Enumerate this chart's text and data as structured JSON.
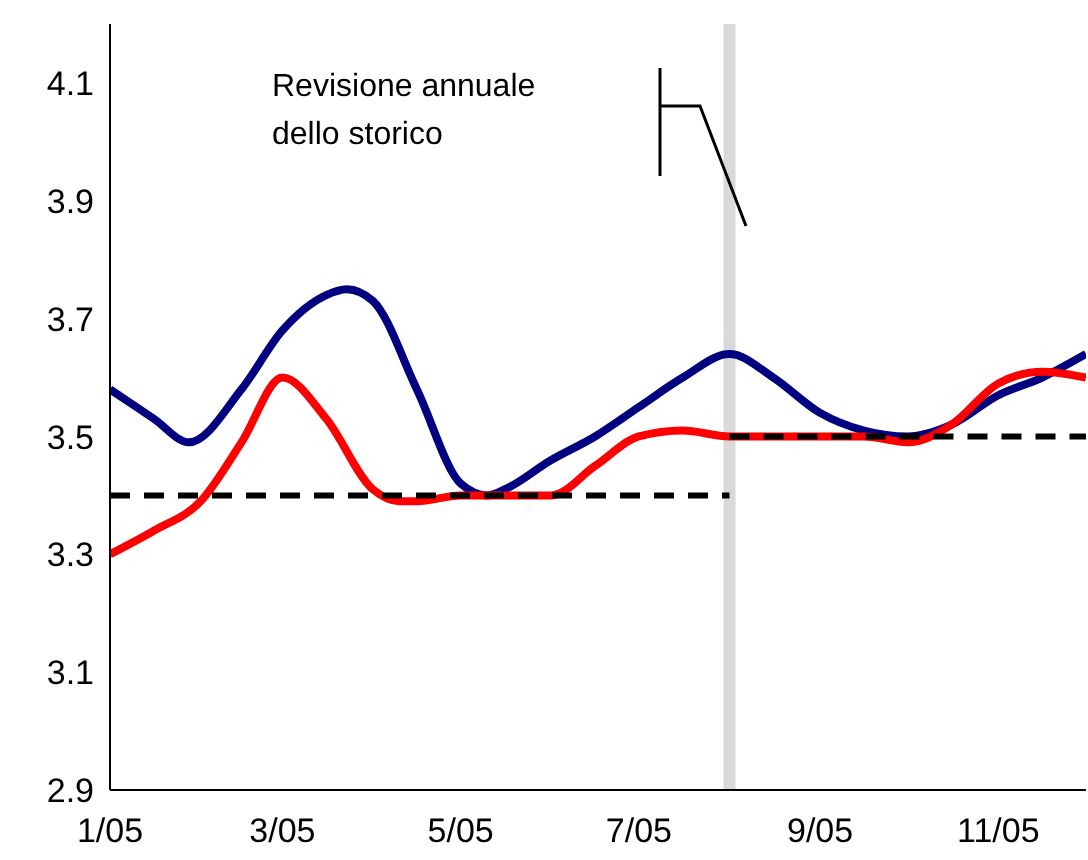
{
  "chart_data": {
    "type": "line",
    "xlim": [
      "2005-01-01",
      "2005-12-01"
    ],
    "xticks": [
      {
        "value": "2005-01-01",
        "label": "1/05"
      },
      {
        "value": "2005-03-01",
        "label": "3/05"
      },
      {
        "value": "2005-05-01",
        "label": "5/05"
      },
      {
        "value": "2005-07-01",
        "label": "7/05"
      },
      {
        "value": "2005-09-01",
        "label": "9/05"
      },
      {
        "value": "2005-11-01",
        "label": "11/05"
      }
    ],
    "ylim": [
      2.9,
      4.2
    ],
    "yticks": [
      2.9,
      3.1,
      3.3,
      3.5,
      3.7,
      3.9,
      4.1
    ],
    "marker": "none",
    "series": [
      {
        "color": "#000080",
        "line_style": "solid",
        "x": [
          "2005-01-01",
          "2005-01-16",
          "2005-01-28",
          "2005-02-15",
          "2005-03-01",
          "2005-03-16",
          "2005-03-23",
          "2005-04-01",
          "2005-04-16",
          "2005-05-01",
          "2005-05-10",
          "2005-05-16",
          "2005-06-01",
          "2005-06-16",
          "2005-07-01",
          "2005-07-16",
          "2005-08-01",
          "2005-08-16",
          "2005-09-01",
          "2005-09-16",
          "2005-10-01",
          "2005-10-16",
          "2005-11-01",
          "2005-11-16",
          "2005-12-01"
        ],
        "values": [
          3.58,
          3.53,
          3.49,
          3.58,
          3.68,
          3.74,
          3.75,
          3.73,
          3.58,
          3.42,
          3.4,
          3.41,
          3.46,
          3.5,
          3.55,
          3.6,
          3.64,
          3.6,
          3.54,
          3.51,
          3.5,
          3.52,
          3.57,
          3.6,
          3.64
        ]
      },
      {
        "color": "#ff0000",
        "line_style": "solid",
        "x": [
          "2005-01-01",
          "2005-01-16",
          "2005-02-01",
          "2005-02-15",
          "2005-03-01",
          "2005-03-16",
          "2005-04-01",
          "2005-04-10",
          "2005-04-16",
          "2005-05-01",
          "2005-05-16",
          "2005-06-01",
          "2005-06-16",
          "2005-07-01",
          "2005-07-16",
          "2005-08-01",
          "2005-08-16",
          "2005-09-01",
          "2005-09-16",
          "2005-10-01",
          "2005-10-16",
          "2005-11-01",
          "2005-11-16",
          "2005-12-01"
        ],
        "values": [
          3.3,
          3.34,
          3.39,
          3.49,
          3.6,
          3.53,
          3.41,
          3.39,
          3.39,
          3.4,
          3.4,
          3.4,
          3.45,
          3.5,
          3.51,
          3.5,
          3.5,
          3.5,
          3.5,
          3.49,
          3.52,
          3.59,
          3.61,
          3.6
        ]
      },
      {
        "color": "#000000",
        "line_style": "dashed",
        "x": [
          "2005-01-01",
          "2005-08-01"
        ],
        "values": [
          3.4,
          3.4
        ]
      },
      {
        "color": "#000000",
        "line_style": "dashed",
        "x": [
          "2005-08-01",
          "2005-12-01"
        ],
        "values": [
          3.5,
          3.5
        ]
      }
    ],
    "ref_lines": [
      {
        "axis": "x",
        "value": "2005-08-01",
        "color": "#d9d9d9"
      }
    ],
    "annotations": [
      "Revisione annuale\ndello storico"
    ]
  }
}
